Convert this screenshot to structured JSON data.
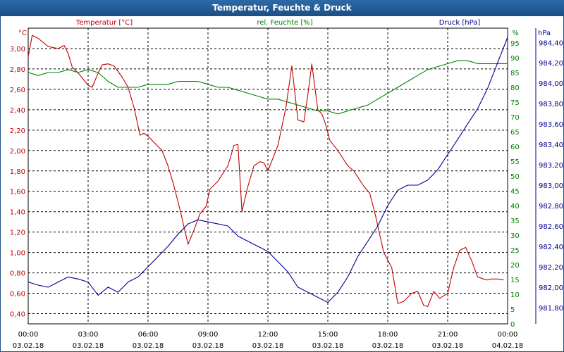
{
  "window": {
    "title": "Temperatur, Feuchte & Druck"
  },
  "chart_data": {
    "type": "line",
    "title": "Temperatur, Feuchte & Druck",
    "colors": {
      "temperature": "#c00000",
      "humidity": "#008000",
      "pressure": "#000090",
      "grid": "#000000"
    },
    "x_ticks": [
      {
        "time": "00:00",
        "date": "03.02.18"
      },
      {
        "time": "03:00",
        "date": "03.02.18"
      },
      {
        "time": "06:00",
        "date": "03.02.18"
      },
      {
        "time": "09:00",
        "date": "03.02.18"
      },
      {
        "time": "12:00",
        "date": "03.02.18"
      },
      {
        "time": "15:00",
        "date": "03.02.18"
      },
      {
        "time": "18:00",
        "date": "03.02.18"
      },
      {
        "time": "21:00",
        "date": "03.02.18"
      },
      {
        "time": "00:00",
        "date": "04.02.18"
      }
    ],
    "xlim": [
      0,
      24
    ],
    "axes": {
      "temperature": {
        "label": "Temperatur [°C]",
        "unit": "°C",
        "ylim": [
          0.3,
          3.2
        ],
        "ticks": [
          "0,40",
          "0,60",
          "0,80",
          "1,00",
          "1,20",
          "1,40",
          "1,60",
          "1,80",
          "2,00",
          "2,20",
          "2,40",
          "2,60",
          "2,80",
          "3,00"
        ],
        "tick_values": [
          0.4,
          0.6,
          0.8,
          1.0,
          1.2,
          1.4,
          1.6,
          1.8,
          2.0,
          2.2,
          2.4,
          2.6,
          2.8,
          3.0
        ]
      },
      "humidity": {
        "label": "rel. Feuchte [%]",
        "unit": "%",
        "ylim": [
          0,
          100
        ],
        "ticks": [
          "0",
          "5",
          "10",
          "15",
          "20",
          "25",
          "30",
          "35",
          "40",
          "45",
          "50",
          "55",
          "60",
          "65",
          "70",
          "75",
          "80",
          "85",
          "90",
          "95"
        ],
        "tick_values": [
          0,
          5,
          10,
          15,
          20,
          25,
          30,
          35,
          40,
          45,
          50,
          55,
          60,
          65,
          70,
          75,
          80,
          85,
          90,
          95
        ]
      },
      "pressure": {
        "label": "Druck [hPa]",
        "unit": "hPa",
        "ylim": [
          981.64,
          984.54
        ],
        "ticks": [
          "981,80",
          "982,00",
          "982,20",
          "982,40",
          "982,60",
          "982,80",
          "983,00",
          "983,20",
          "983,40",
          "983,60",
          "983,80",
          "984,00",
          "984,20",
          "984,40"
        ],
        "tick_values": [
          981.8,
          982.0,
          982.2,
          982.4,
          982.6,
          982.8,
          983.0,
          983.2,
          983.4,
          983.6,
          983.8,
          984.0,
          984.2,
          984.4
        ]
      }
    },
    "series": [
      {
        "name": "Temperatur [°C]",
        "axis": "temperature",
        "x": [
          0,
          0.2,
          0.5,
          1,
          1.5,
          1.8,
          2,
          2.2,
          2.5,
          3,
          3.2,
          3.5,
          3.7,
          4,
          4.3,
          4.7,
          5,
          5.3,
          5.6,
          5.8,
          6,
          6.3,
          6.7,
          7,
          7.3,
          7.6,
          8,
          8.3,
          8.6,
          8.9,
          9.1,
          9.5,
          10,
          10.3,
          10.5,
          10.7,
          11,
          11.3,
          11.6,
          11.8,
          12,
          12.5,
          12.9,
          13.2,
          13.5,
          13.8,
          14,
          14.2,
          14.5,
          14.7,
          14.9,
          15.1,
          15.5,
          16,
          16.3,
          16.8,
          17.1,
          17.4,
          17.8,
          18.2,
          18.5,
          18.8,
          19.2,
          19.5,
          19.8,
          20,
          20.3,
          20.6,
          21,
          21.3,
          21.6,
          21.9,
          22.2,
          22.5,
          22.8,
          23,
          23.2,
          23.5,
          23.8
        ],
        "values": [
          2.92,
          3.13,
          3.1,
          3.02,
          3.0,
          3.03,
          2.95,
          2.82,
          2.76,
          2.64,
          2.62,
          2.76,
          2.84,
          2.85,
          2.83,
          2.72,
          2.62,
          2.42,
          2.15,
          2.17,
          2.14,
          2.08,
          2.0,
          1.85,
          1.65,
          1.42,
          1.08,
          1.22,
          1.38,
          1.45,
          1.62,
          1.7,
          1.85,
          2.05,
          2.06,
          1.4,
          1.65,
          1.85,
          1.89,
          1.88,
          1.8,
          2.05,
          2.42,
          2.83,
          2.3,
          2.28,
          2.55,
          2.85,
          2.4,
          2.36,
          2.25,
          2.1,
          2.0,
          1.85,
          1.8,
          1.65,
          1.58,
          1.35,
          1.0,
          0.85,
          0.5,
          0.52,
          0.6,
          0.62,
          0.48,
          0.47,
          0.62,
          0.55,
          0.6,
          0.85,
          1.02,
          1.05,
          0.92,
          0.76,
          0.74,
          0.73,
          0.74,
          0.74,
          0.73
        ]
      },
      {
        "name": "rel. Feuchte [%]",
        "axis": "humidity",
        "x": [
          0,
          0.5,
          1,
          1.5,
          2,
          2.5,
          3,
          3.5,
          4,
          4.5,
          5,
          5.5,
          6,
          6.5,
          7,
          7.5,
          8,
          8.5,
          9,
          9.5,
          10,
          10.5,
          11,
          11.5,
          12,
          12.5,
          13,
          13.5,
          14,
          14.5,
          15,
          15.5,
          16,
          16.5,
          17,
          17.5,
          18,
          18.5,
          19,
          19.5,
          20,
          20.5,
          21,
          21.5,
          22,
          22.5,
          23,
          23.5,
          24
        ],
        "values": [
          85,
          84,
          85,
          85,
          86,
          85,
          86,
          85,
          82,
          80,
          80,
          80,
          81,
          81,
          81,
          82,
          82,
          82,
          81,
          80,
          80,
          79,
          78,
          77,
          76,
          76,
          75,
          74,
          73,
          72,
          72,
          71,
          72,
          73,
          74,
          76,
          78,
          80,
          82,
          84,
          86,
          87,
          88,
          89,
          89,
          88,
          88,
          88,
          88
        ]
      },
      {
        "name": "Druck [hPa]",
        "axis": "pressure",
        "x": [
          0,
          0.5,
          1,
          1.5,
          2,
          2.5,
          3,
          3.5,
          4,
          4.5,
          5,
          5.5,
          6,
          6.5,
          7,
          7.5,
          8,
          8.5,
          9,
          9.5,
          10,
          10.5,
          11,
          11.5,
          12,
          12.5,
          13,
          13.5,
          14,
          14.5,
          15,
          15.5,
          16,
          16.5,
          17,
          17.5,
          18,
          18.5,
          19,
          19.5,
          20,
          20.5,
          21,
          21.5,
          22,
          22.5,
          23,
          23.5,
          24
        ],
        "values": [
          982.05,
          982.02,
          982.0,
          982.05,
          982.1,
          982.08,
          982.05,
          981.92,
          982.0,
          981.95,
          982.05,
          982.1,
          982.2,
          982.3,
          982.4,
          982.52,
          982.62,
          982.66,
          982.64,
          982.62,
          982.6,
          982.5,
          982.45,
          982.4,
          982.35,
          982.25,
          982.15,
          982.0,
          981.95,
          981.9,
          981.85,
          981.95,
          982.1,
          982.3,
          982.45,
          982.6,
          982.8,
          982.95,
          983.0,
          983.0,
          983.05,
          983.15,
          983.3,
          983.45,
          983.6,
          983.75,
          983.95,
          984.2,
          984.45
        ]
      }
    ]
  }
}
